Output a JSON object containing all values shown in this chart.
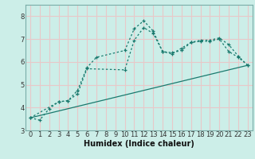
{
  "xlabel": "Humidex (Indice chaleur)",
  "xlim": [
    -0.5,
    23.5
  ],
  "ylim": [
    3.0,
    8.5
  ],
  "yticks": [
    3,
    4,
    5,
    6,
    7,
    8
  ],
  "xticks": [
    0,
    1,
    2,
    3,
    4,
    5,
    6,
    7,
    8,
    9,
    10,
    11,
    12,
    13,
    14,
    15,
    16,
    17,
    18,
    19,
    20,
    21,
    22,
    23
  ],
  "bg_color": "#cceee8",
  "grid_color": "#e8c8c8",
  "line_color": "#1a7a6e",
  "line1_x": [
    0,
    1,
    2,
    3,
    4,
    5,
    6,
    7,
    10,
    11,
    12,
    13,
    14,
    15,
    16,
    17,
    18,
    19,
    20,
    21,
    22,
    23
  ],
  "line1_y": [
    3.55,
    3.45,
    3.95,
    4.25,
    4.3,
    4.75,
    5.75,
    6.2,
    6.5,
    7.45,
    7.8,
    7.35,
    6.45,
    6.35,
    6.6,
    6.85,
    6.95,
    6.95,
    7.05,
    6.75,
    6.25,
    5.85
  ],
  "line2_x": [
    0,
    3,
    4,
    5,
    6,
    10,
    11,
    12,
    13,
    14,
    15,
    16,
    17,
    18,
    19,
    20,
    21,
    22,
    23
  ],
  "line2_y": [
    3.55,
    4.25,
    4.3,
    4.6,
    5.7,
    5.65,
    6.95,
    7.5,
    7.25,
    6.45,
    6.4,
    6.5,
    6.85,
    6.9,
    6.9,
    7.0,
    6.45,
    6.2,
    5.85
  ],
  "line3_x": [
    0,
    23
  ],
  "line3_y": [
    3.55,
    5.85
  ]
}
